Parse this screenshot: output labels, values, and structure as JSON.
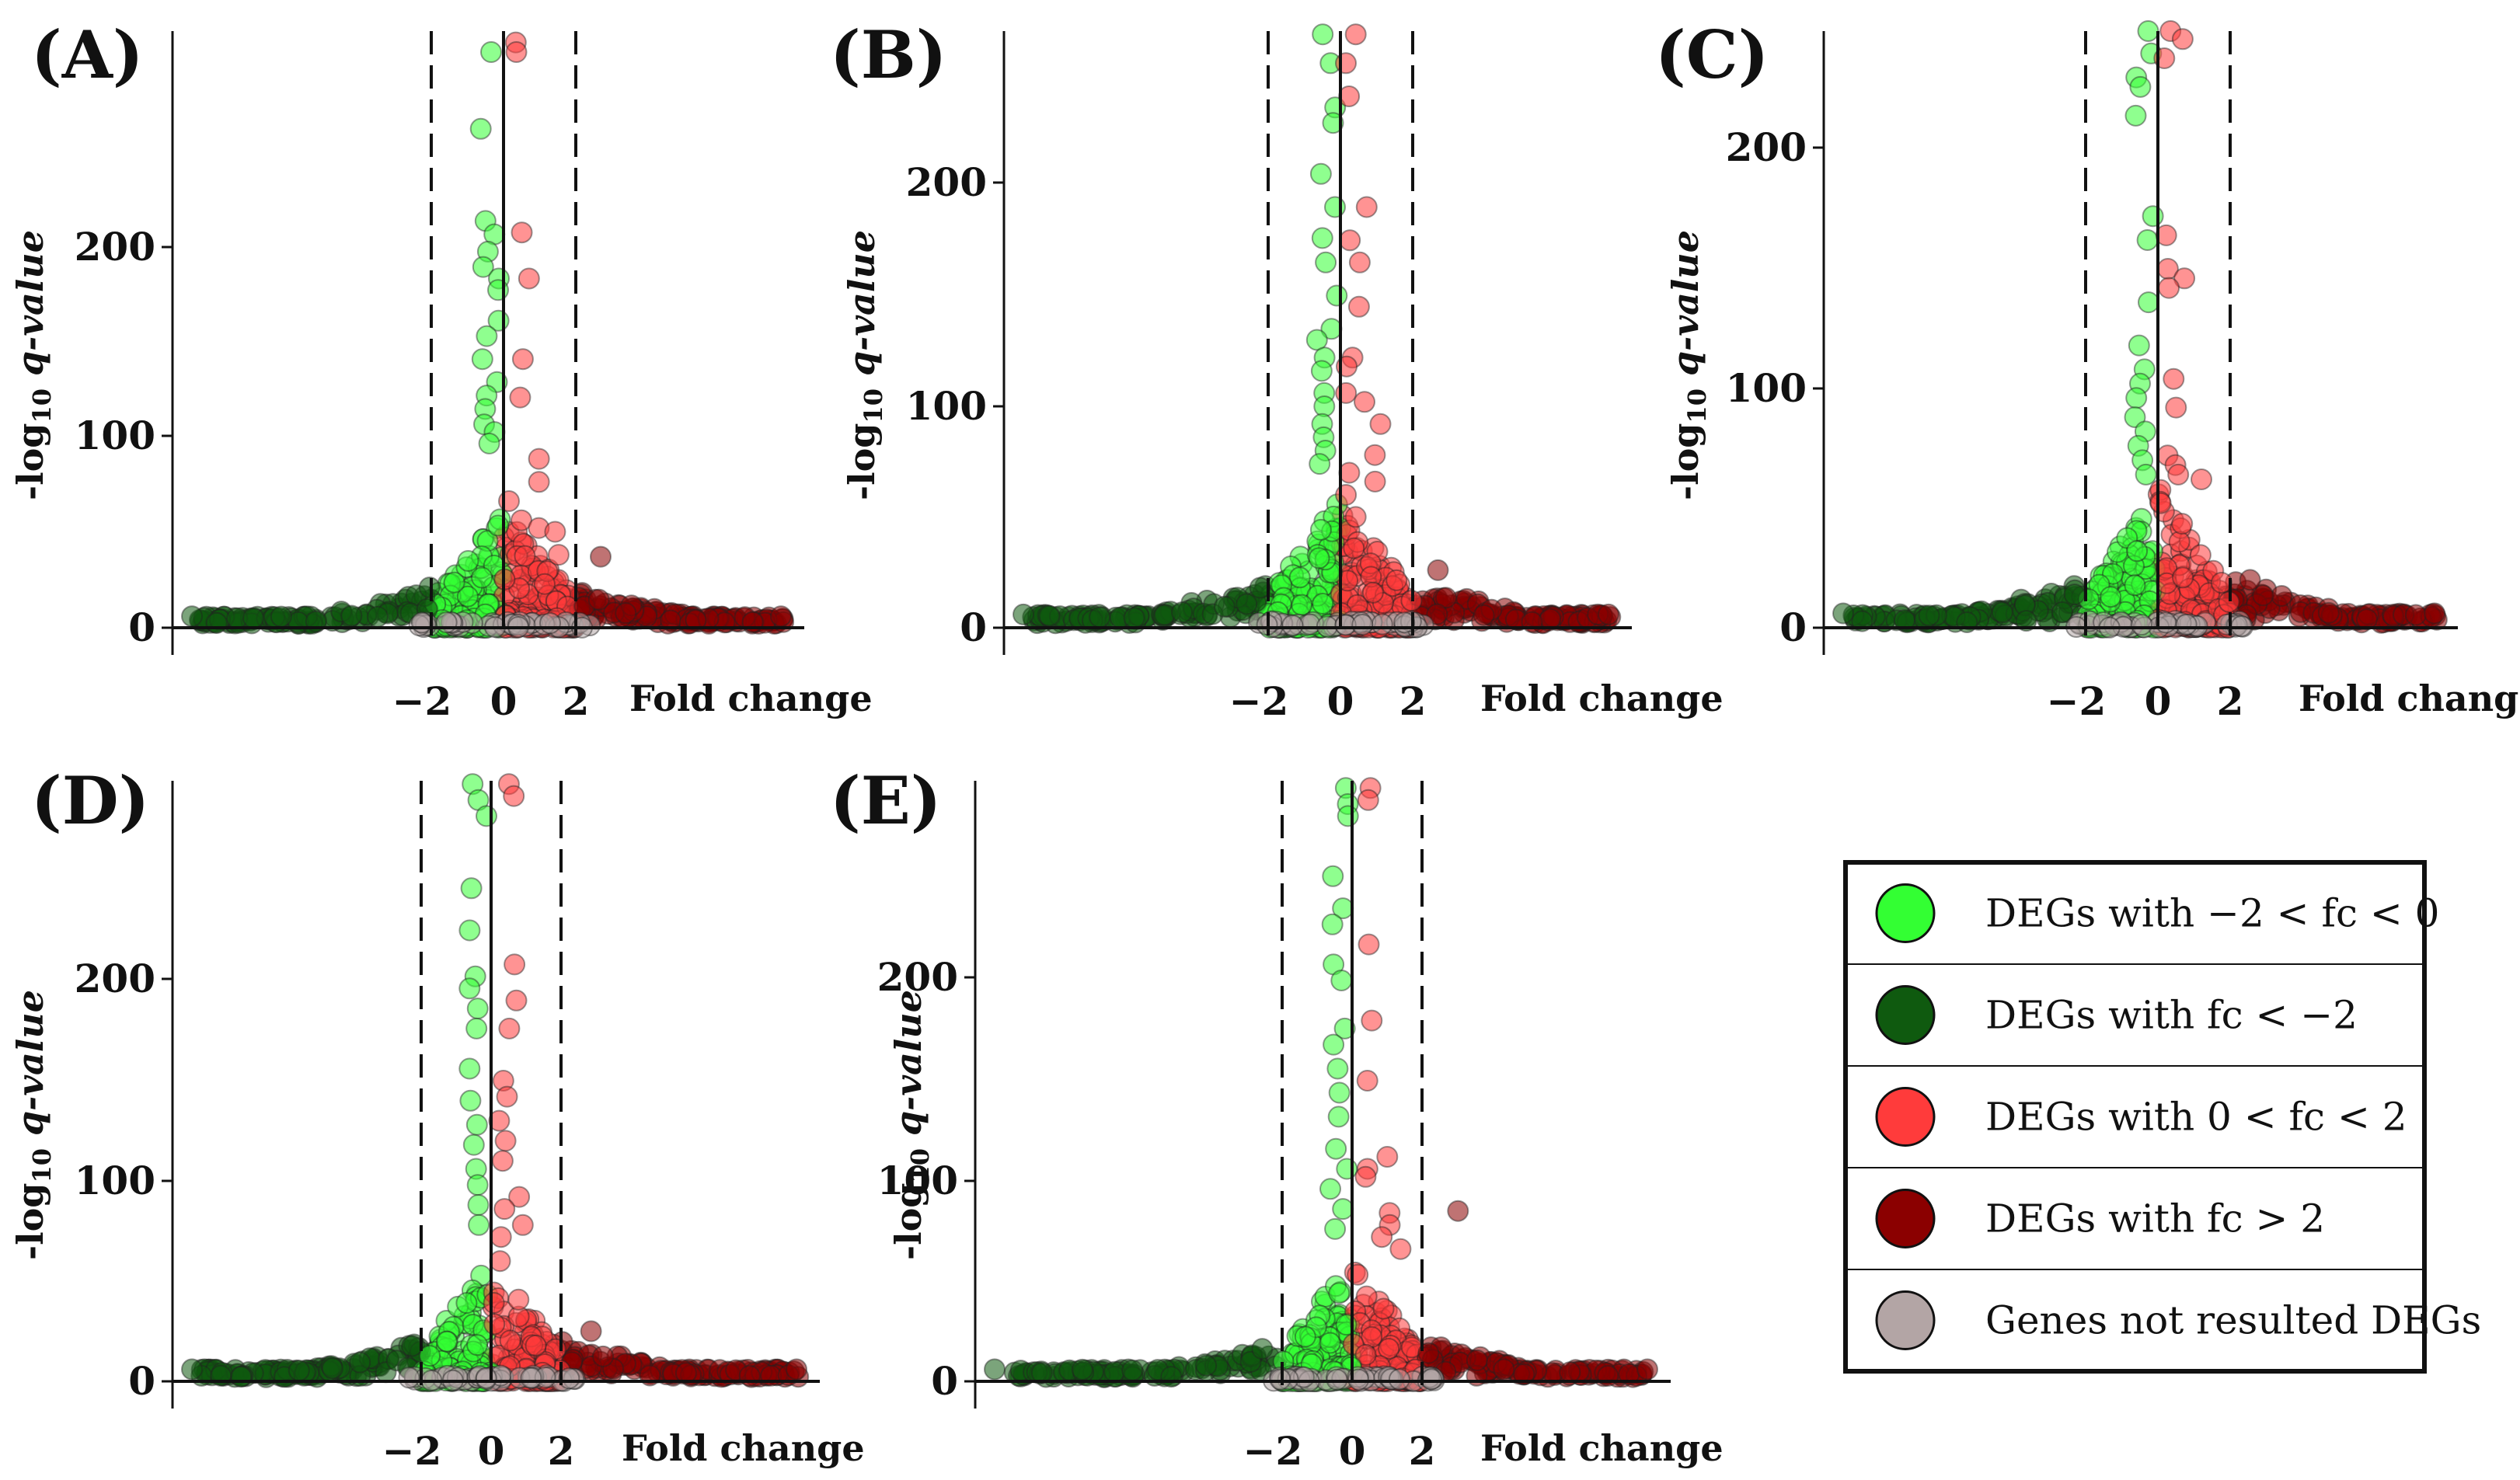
{
  "chart_data": [
    {
      "type": "scatter",
      "panel": "(A)",
      "title": "",
      "subtitle": "",
      "xlabel": "Fold change",
      "ylabel_prefix": "-log",
      "ylabel_sub": "10",
      "ylabel_suffix": "q-value",
      "xticks": [
        "−2",
        "0",
        "2"
      ],
      "yticks": [
        "0",
        "100",
        "200"
      ],
      "ylim": [
        0,
        310
      ],
      "xlim": [
        -13,
        8
      ],
      "thresholds": [
        -2,
        2
      ],
      "seed": 11,
      "n_low": 540,
      "peaks": {
        "light_green": [
          300,
          260,
          212,
          205,
          196,
          188,
          182,
          176,
          160,
          152,
          140,
          128,
          121,
          114,
          106,
          102,
          96
        ],
        "red": [
          305,
          300,
          206,
          182,
          140,
          120,
          88,
          76,
          66,
          56,
          52,
          50,
          38
        ],
        "dark_red": [
          37
        ]
      },
      "grid": false,
      "legend": "bottom-right (shared)"
    },
    {
      "type": "scatter",
      "panel": "(B)",
      "title": "",
      "subtitle": "",
      "xlabel": "Fold change",
      "ylabel_prefix": "-log",
      "ylabel_sub": "10",
      "ylabel_suffix": "q-value",
      "xticks": [
        "−2",
        "0",
        "2"
      ],
      "yticks": [
        "0",
        "100",
        "200"
      ],
      "ylim": [
        0,
        268
      ],
      "xlim": [
        -12,
        10
      ],
      "thresholds": [
        -2,
        2
      ],
      "seed": 23,
      "n_low": 540,
      "peaks": {
        "light_green": [
          268,
          255,
          235,
          228,
          205,
          190,
          176,
          165,
          150,
          135,
          130,
          122,
          116,
          106,
          100,
          92,
          86,
          80,
          74
        ],
        "red": [
          268,
          255,
          240,
          190,
          175,
          165,
          145,
          122,
          118,
          106,
          102,
          92,
          78,
          70,
          66,
          60
        ],
        "dark_red": [
          26
        ]
      },
      "grid": false,
      "legend": "bottom-right (shared)"
    },
    {
      "type": "scatter",
      "panel": "(C)",
      "title": "",
      "subtitle": "",
      "xlabel": "Fold change",
      "ylabel_prefix": "-log",
      "ylabel_sub": "10",
      "ylabel_suffix": "q-value",
      "xticks": [
        "−2",
        "0",
        "2"
      ],
      "yticks": [
        "0",
        "100",
        "200"
      ],
      "ylim": [
        0,
        250
      ],
      "xlim": [
        -13,
        12
      ],
      "thresholds": [
        -2,
        2
      ],
      "seed": 37,
      "n_low": 540,
      "peaks": {
        "light_green": [
          250,
          240,
          230,
          226,
          214,
          172,
          162,
          136,
          118,
          108,
          102,
          96,
          88,
          82,
          76,
          70,
          64
        ],
        "red": [
          250,
          246,
          238,
          164,
          150,
          146,
          142,
          104,
          92,
          72,
          68,
          64,
          62
        ],
        "dark_red": [
          20
        ]
      },
      "grid": false,
      "legend": "bottom-right (shared)"
    },
    {
      "type": "scatter",
      "panel": "(D)",
      "title": "",
      "subtitle": "",
      "xlabel": "Fold change",
      "ylabel_prefix": "-log",
      "ylabel_sub": "10",
      "ylabel_suffix": "q-value",
      "xticks": [
        "−2",
        "0",
        "2"
      ],
      "yticks": [
        "0",
        "100",
        "200"
      ],
      "ylim": [
        0,
        298
      ],
      "xlim": [
        -12,
        12
      ],
      "thresholds": [
        -2,
        2
      ],
      "seed": 41,
      "n_low": 540,
      "peaks": {
        "light_green": [
          298,
          290,
          282,
          246,
          225,
          202,
          196,
          186,
          176,
          156,
          140,
          128,
          118,
          106,
          98,
          88,
          78
        ],
        "red": [
          298,
          292,
          208,
          190,
          176,
          150,
          142,
          130,
          120,
          110,
          92,
          86,
          78,
          72,
          60
        ],
        "dark_red": [
          25
        ]
      },
      "grid": false,
      "legend": "bottom-right (shared)"
    },
    {
      "type": "scatter",
      "panel": "(E)",
      "title": "",
      "subtitle": "",
      "xlabel": "Fold change",
      "ylabel_prefix": "-log",
      "ylabel_sub": "10",
      "ylabel_suffix": "q-value",
      "xticks": [
        "−2",
        "0",
        "2"
      ],
      "yticks": [
        "0",
        "100",
        "200"
      ],
      "ylim": [
        0,
        296
      ],
      "xlim": [
        -11,
        9
      ],
      "thresholds": [
        -2,
        2
      ],
      "seed": 53,
      "n_low": 540,
      "peaks": {
        "light_green": [
          296,
          288,
          282,
          252,
          236,
          228,
          208,
          200,
          176,
          168,
          156,
          144,
          132,
          116,
          106,
          96,
          86,
          76
        ],
        "red": [
          296,
          290,
          218,
          180,
          150,
          112,
          106,
          102,
          84,
          78,
          72,
          66
        ],
        "dark_red": [
          85
        ]
      },
      "grid": false,
      "legend": "bottom-right (shared)"
    }
  ],
  "legend": {
    "entries": [
      {
        "label": "DEGs with −2 < fc < 0",
        "color": "#33ff33"
      },
      {
        "label": "DEGs with fc < −2",
        "color": "#0f5a0f"
      },
      {
        "label": "DEGs with 0 < fc < 2",
        "color": "#ff3b3b"
      },
      {
        "label": "DEGs with fc > 2",
        "color": "#8b0000"
      },
      {
        "label": "Genes not resulted DEGs",
        "color": "#b3a5a5"
      }
    ]
  },
  "colors": {
    "light_green": "#33ff33",
    "dark_green": "#0f5a0f",
    "red": "#ff3b3b",
    "dark_red": "#8b0000",
    "grey": "#b3a5a5"
  }
}
